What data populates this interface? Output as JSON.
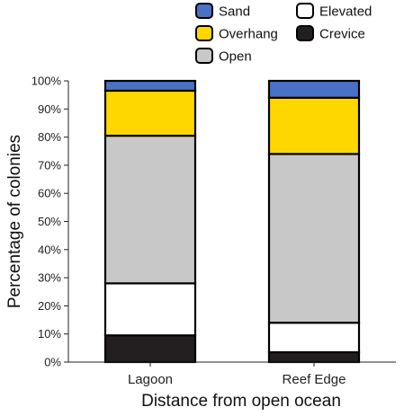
{
  "chart_data": {
    "type": "bar",
    "stacked": true,
    "title": "",
    "xlabel": "Distance from open ocean",
    "ylabel": "Percentage of colonies",
    "ylim": [
      0,
      100
    ],
    "yticks": [
      "0%",
      "10%",
      "20%",
      "30%",
      "40%",
      "50%",
      "60%",
      "70%",
      "80%",
      "90%",
      "100%"
    ],
    "categories": [
      "Lagoon",
      "Reef Edge"
    ],
    "series": [
      {
        "name": "Crevice",
        "color": "#231f20",
        "values": [
          9.5,
          3.5
        ]
      },
      {
        "name": "Elevated",
        "color": "#ffffff",
        "values": [
          18.5,
          10.5
        ]
      },
      {
        "name": "Open",
        "color": "#c8c8c8",
        "values": [
          52.5,
          60.0
        ]
      },
      {
        "name": "Overhang",
        "color": "#ffd700",
        "values": [
          16.0,
          20.0
        ]
      },
      {
        "name": "Sand",
        "color": "#4a72c4",
        "values": [
          3.5,
          6.0
        ]
      }
    ],
    "legend": {
      "placement": "top",
      "entries": [
        "Sand",
        "Elevated",
        "Overhang",
        "Crevice",
        "Open"
      ]
    },
    "grid": false
  }
}
